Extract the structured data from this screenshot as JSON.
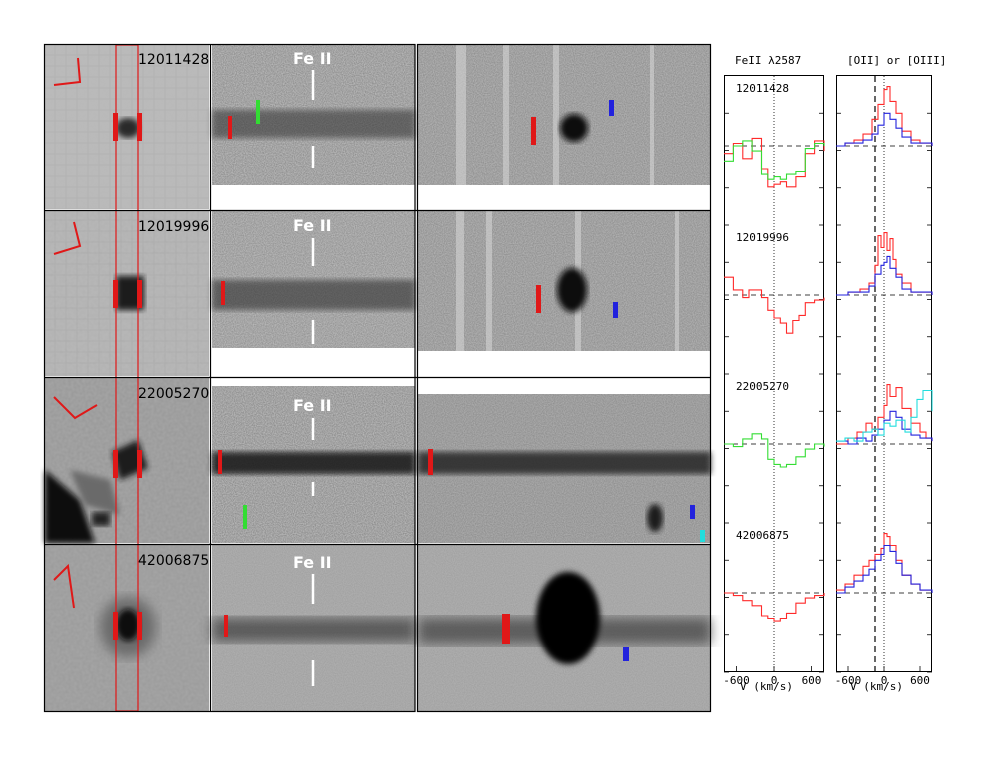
{
  "rows": [
    {
      "id": "12011428"
    },
    {
      "id": "12019996"
    },
    {
      "id": "22005270"
    },
    {
      "id": "42006875"
    }
  ],
  "feii_label": "Fe II",
  "column_titles": {
    "left": "FeII λ2587",
    "right": "[OII] or [OIII]"
  },
  "colors": {
    "red": "#ff2a2a",
    "green": "#33dd33",
    "blue": "#2222dd",
    "cyan": "#22dddd"
  },
  "chart_data": [
    {
      "type": "line",
      "title": "FeII λ2587",
      "xlabel": "V (km/s)",
      "xticks": [
        -600,
        0,
        600
      ],
      "xlim": [
        -800,
        800
      ],
      "panels": [
        {
          "label": "12011428",
          "series": [
            {
              "color": "red",
              "x": [
                -800,
                -650,
                -500,
                -350,
                -200,
                -100,
                0,
                100,
                200,
                350,
                500,
                650,
                800
              ],
              "y": [
                0.85,
                1.05,
                0.75,
                1.15,
                0.55,
                0.2,
                0.25,
                0.3,
                0.2,
                0.4,
                0.85,
                1.1,
                0.9
              ]
            },
            {
              "color": "green",
              "x": [
                -800,
                -650,
                -500,
                -350,
                -200,
                -100,
                0,
                100,
                200,
                350,
                500,
                650,
                800
              ],
              "y": [
                0.7,
                1.0,
                1.1,
                0.9,
                0.45,
                0.35,
                0.4,
                0.35,
                0.45,
                0.5,
                0.95,
                1.05,
                1.0
              ]
            }
          ]
        },
        {
          "label": "12019996",
          "series": [
            {
              "color": "red",
              "x": [
                -800,
                -650,
                -500,
                -400,
                -300,
                -200,
                -100,
                0,
                100,
                200,
                300,
                400,
                500,
                650,
                800
              ],
              "y": [
                1.35,
                1.1,
                0.95,
                1.1,
                1.1,
                0.95,
                0.7,
                0.55,
                0.45,
                0.25,
                0.5,
                0.6,
                0.85,
                0.9,
                0.95
              ]
            }
          ]
        },
        {
          "label": "22005270",
          "series": [
            {
              "color": "green",
              "x": [
                -800,
                -650,
                -500,
                -350,
                -200,
                -100,
                0,
                100,
                200,
                350,
                500,
                650,
                800
              ],
              "y": [
                1.0,
                0.95,
                1.1,
                1.2,
                1.1,
                0.7,
                0.6,
                0.55,
                0.6,
                0.75,
                0.9,
                1.0,
                0.95
              ]
            }
          ]
        },
        {
          "label": "42006875",
          "series": [
            {
              "color": "red",
              "x": [
                -800,
                -650,
                -500,
                -350,
                -200,
                -100,
                0,
                100,
                200,
                350,
                500,
                650,
                800
              ],
              "y": [
                1.0,
                0.95,
                0.85,
                0.75,
                0.55,
                0.5,
                0.45,
                0.5,
                0.6,
                0.8,
                0.9,
                0.95,
                1.0
              ]
            }
          ]
        }
      ]
    },
    {
      "type": "line",
      "title": "[OII] or [OIII]",
      "xlabel": "V (km/s)",
      "xticks": [
        -600,
        0,
        600
      ],
      "xlim": [
        -800,
        800
      ],
      "panels": [
        {
          "label": "12011428",
          "series": [
            {
              "color": "red",
              "x": [
                -800,
                -650,
                -500,
                -350,
                -200,
                -100,
                0,
                50,
                100,
                200,
                300,
                450,
                600,
                800
              ],
              "y": [
                0.0,
                0.05,
                0.1,
                0.2,
                0.45,
                0.7,
                0.95,
                1.0,
                0.75,
                0.55,
                0.25,
                0.1,
                0.05,
                0.0
              ]
            },
            {
              "color": "blue",
              "x": [
                -800,
                -650,
                -500,
                -350,
                -200,
                -100,
                0,
                100,
                200,
                300,
                450,
                600,
                800
              ],
              "y": [
                0.0,
                0.05,
                0.05,
                0.1,
                0.2,
                0.35,
                0.55,
                0.45,
                0.3,
                0.15,
                0.05,
                0.05,
                0.0
              ]
            }
          ]
        },
        {
          "label": "12019996",
          "series": [
            {
              "color": "red",
              "x": [
                -800,
                -600,
                -400,
                -250,
                -150,
                -100,
                -50,
                0,
                50,
                100,
                150,
                200,
                300,
                450,
                600,
                800
              ],
              "y": [
                0.0,
                0.05,
                0.1,
                0.2,
                0.5,
                1.0,
                0.8,
                1.05,
                0.75,
                0.95,
                0.6,
                0.35,
                0.2,
                0.05,
                0.05,
                0.0
              ]
            },
            {
              "color": "blue",
              "x": [
                -800,
                -600,
                -400,
                -250,
                -150,
                -50,
                0,
                50,
                100,
                200,
                300,
                450,
                600,
                800
              ],
              "y": [
                0.0,
                0.05,
                0.05,
                0.15,
                0.35,
                0.5,
                0.55,
                0.65,
                0.45,
                0.3,
                0.1,
                0.05,
                0.05,
                0.0
              ]
            }
          ]
        },
        {
          "label": "22005270",
          "series": [
            {
              "color": "red",
              "x": [
                -800,
                -600,
                -450,
                -300,
                -200,
                -100,
                0,
                50,
                100,
                200,
                300,
                450,
                600,
                700,
                800
              ],
              "y": [
                0.0,
                0.1,
                0.2,
                0.35,
                0.25,
                0.45,
                0.65,
                1.0,
                0.8,
                0.95,
                0.6,
                0.35,
                0.2,
                0.1,
                0.05
              ]
            },
            {
              "color": "blue",
              "x": [
                -800,
                -600,
                -450,
                -300,
                -200,
                -100,
                0,
                100,
                200,
                300,
                450,
                600,
                800
              ],
              "y": [
                0.05,
                0.0,
                0.1,
                0.05,
                0.15,
                0.25,
                0.4,
                0.55,
                0.45,
                0.25,
                0.15,
                0.1,
                0.05
              ]
            },
            {
              "color": "cyan",
              "x": [
                -800,
                -650,
                -500,
                -350,
                -200,
                -100,
                0,
                100,
                200,
                350,
                450,
                550,
                650,
                800
              ],
              "y": [
                0.05,
                0.1,
                0.05,
                0.2,
                0.25,
                0.15,
                0.35,
                0.3,
                0.4,
                0.2,
                0.45,
                0.75,
                0.9,
                0.55
              ]
            }
          ]
        },
        {
          "label": "42006875",
          "series": [
            {
              "color": "red",
              "x": [
                -800,
                -650,
                -500,
                -350,
                -250,
                -150,
                -50,
                0,
                50,
                100,
                200,
                300,
                450,
                600,
                800
              ],
              "y": [
                0.05,
                0.15,
                0.3,
                0.45,
                0.55,
                0.65,
                0.75,
                1.0,
                0.95,
                0.8,
                0.55,
                0.3,
                0.15,
                0.05,
                0.05
              ]
            },
            {
              "color": "blue",
              "x": [
                -800,
                -650,
                -500,
                -350,
                -250,
                -150,
                -50,
                0,
                100,
                200,
                300,
                450,
                600,
                800
              ],
              "y": [
                0.0,
                0.1,
                0.2,
                0.3,
                0.4,
                0.55,
                0.65,
                0.8,
                0.7,
                0.5,
                0.3,
                0.15,
                0.05,
                0.0
              ]
            }
          ]
        }
      ]
    }
  ]
}
